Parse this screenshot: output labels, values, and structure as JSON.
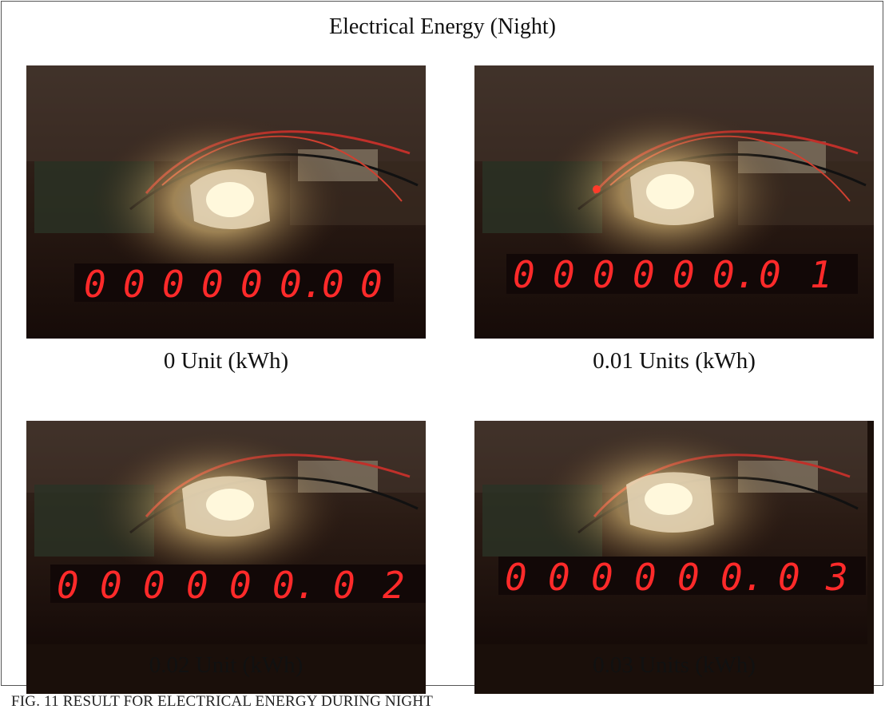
{
  "figure": {
    "title": "Electrical Energy (Night)",
    "caption": "FIG. 11    RESULT FOR ELECTRICAL ENERGY DURING NIGHT"
  },
  "panels": [
    {
      "label": "0 Unit (kWh)",
      "display": [
        "0",
        "0",
        "0",
        "0",
        "0",
        "0.",
        "0",
        "0"
      ]
    },
    {
      "label": "0.01 Units (kWh)",
      "display": [
        "0",
        "0",
        "0",
        "0",
        "0",
        "0.",
        "0",
        "1"
      ]
    },
    {
      "label": "0.02 Unit (kWh)",
      "display": [
        "0",
        "0",
        "0",
        "0",
        "0",
        "0.",
        "0",
        "2"
      ]
    },
    {
      "label": "0.03 Units (kWh)",
      "display": [
        "0",
        "0",
        "0",
        "0",
        "0",
        "0.",
        "0",
        "3"
      ]
    }
  ],
  "colors": {
    "led_segment": "#ff2a2a",
    "background": "#1a0f0a",
    "lamp_glow": "#fff3c8"
  }
}
